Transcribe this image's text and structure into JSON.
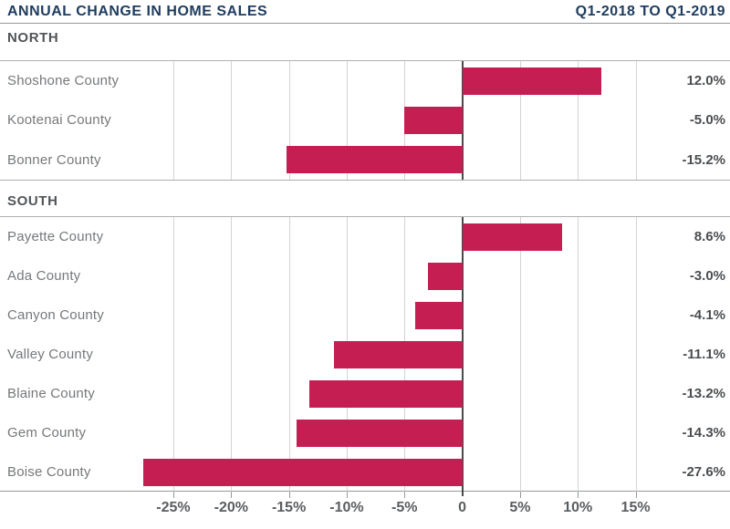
{
  "header": {
    "title": "ANNUAL CHANGE IN HOME SALES",
    "period": "Q1-2018 TO Q1-2019"
  },
  "colors": {
    "bar": "#c51e53",
    "heading_navy": "#1e3c5f",
    "zero_line": "#4a4b4c",
    "gridline": "#d2d3d4"
  },
  "chart_data": {
    "type": "bar",
    "orientation": "horizontal",
    "title": "Annual Change in Home Sales",
    "subtitle": "Q1-2018 to Q1-2019",
    "unit": "percent",
    "xlim": [
      -30,
      17.5
    ],
    "grid": true,
    "axis_ticks": [
      {
        "value": -25,
        "label": "-25%"
      },
      {
        "value": -20,
        "label": "-20%"
      },
      {
        "value": -15,
        "label": "-15%"
      },
      {
        "value": -10,
        "label": "-10%"
      },
      {
        "value": -5,
        "label": "-5%"
      },
      {
        "value": 0,
        "label": "0"
      },
      {
        "value": 5,
        "label": "5%"
      },
      {
        "value": 10,
        "label": "10%"
      },
      {
        "value": 15,
        "label": "15%"
      }
    ],
    "sections": [
      {
        "label": "NORTH",
        "rows": [
          {
            "county": "Shoshone County",
            "value": 12.0,
            "value_label": "12.0%"
          },
          {
            "county": "Kootenai County",
            "value": -5.0,
            "value_label": "-5.0%"
          },
          {
            "county": "Bonner County",
            "value": -15.2,
            "value_label": "-15.2%"
          }
        ]
      },
      {
        "label": "SOUTH",
        "rows": [
          {
            "county": "Payette County",
            "value": 8.6,
            "value_label": "8.6%"
          },
          {
            "county": "Ada County",
            "value": -3.0,
            "value_label": "-3.0%"
          },
          {
            "county": "Canyon County",
            "value": -4.1,
            "value_label": "-4.1%"
          },
          {
            "county": "Valley County",
            "value": -11.1,
            "value_label": "-11.1%"
          },
          {
            "county": "Blaine County",
            "value": -13.2,
            "value_label": "-13.2%"
          },
          {
            "county": "Gem County",
            "value": -14.3,
            "value_label": "-14.3%"
          },
          {
            "county": "Boise County",
            "value": -27.6,
            "value_label": "-27.6%"
          }
        ]
      }
    ]
  }
}
